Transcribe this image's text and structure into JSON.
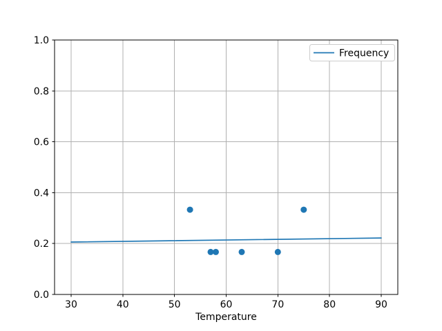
{
  "figure": {
    "background": "#ffffff",
    "title": ""
  },
  "chart_data": {
    "type": "scatter",
    "title": "",
    "xlabel": "Temperature",
    "ylabel": "",
    "xlim": [
      26.8,
      93.2
    ],
    "ylim": [
      0.0,
      1.0
    ],
    "xticks": [
      30,
      40,
      50,
      60,
      70,
      80,
      90
    ],
    "xtick_labels": [
      "30",
      "40",
      "50",
      "60",
      "70",
      "80",
      "90"
    ],
    "yticks": [
      0.0,
      0.2,
      0.4,
      0.6,
      0.8,
      1.0
    ],
    "ytick_labels": [
      "0.0",
      "0.2",
      "0.4",
      "0.6",
      "0.8",
      "1.0"
    ],
    "grid": true,
    "grid_color": "#b0b0b0",
    "spine_color": "#000000",
    "accent_color": "#1f77b4",
    "legend": {
      "position": "upper right",
      "entries": [
        {
          "label": "Frequency",
          "color": "#1f77b4",
          "style": "line"
        }
      ]
    },
    "series": [
      {
        "name": "Frequency",
        "kind": "line",
        "color": "#1f77b4",
        "points": [
          [
            30,
            0.206
          ],
          [
            90,
            0.222
          ]
        ]
      },
      {
        "name": "observations",
        "kind": "scatter",
        "color": "#1f77b4",
        "marker": "circle",
        "marker_radius": 4.5,
        "points": [
          [
            53,
            0.333
          ],
          [
            57,
            0.167
          ],
          [
            58,
            0.167
          ],
          [
            63,
            0.167
          ],
          [
            70,
            0.167
          ],
          [
            75,
            0.333
          ]
        ]
      }
    ]
  }
}
